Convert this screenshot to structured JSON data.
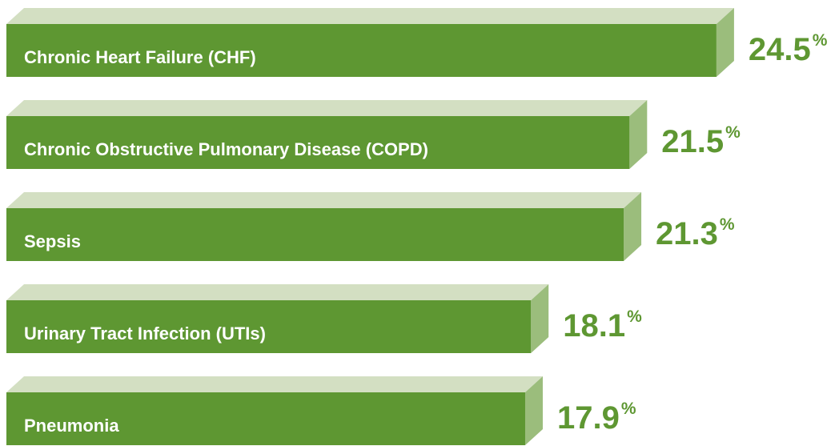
{
  "chart_data": {
    "type": "bar3d",
    "categories": [
      "Chronic Heart Failure (CHF)",
      "Chronic Obstructive Pulmonary Disease (COPD)",
      "Sepsis",
      "Urinary Tract Infection (UTIs)",
      "Pneumonia"
    ],
    "values": [
      24.5,
      21.5,
      21.3,
      18.1,
      17.9
    ],
    "value_unit": "%",
    "color": "#5e9732",
    "top_color": "#d3dfc2",
    "side_color": "#9bbd7c",
    "label_color": "#5e9732"
  }
}
